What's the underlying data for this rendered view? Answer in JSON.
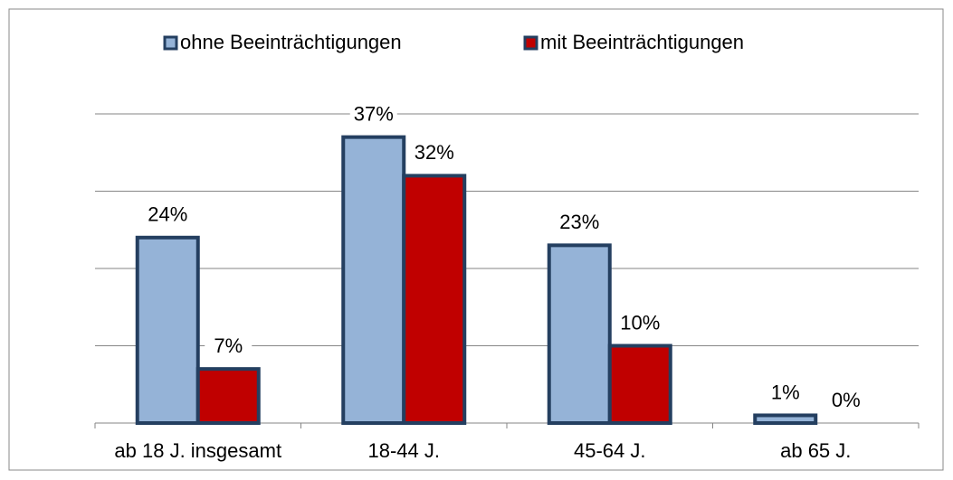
{
  "chart_data": {
    "type": "bar",
    "categories": [
      "ab 18 J. insgesamt",
      "18-44 J.",
      "45-64 J.",
      "ab 65 J."
    ],
    "series": [
      {
        "name": "ohne Beeinträchtigungen",
        "color": "#95b3d7",
        "values": [
          24,
          37,
          23,
          1
        ],
        "value_labels": [
          "24%",
          "37%",
          "23%",
          "1%"
        ]
      },
      {
        "name": "mit Beeinträchtigungen",
        "color": "#c00000",
        "values": [
          7,
          32,
          10,
          0
        ],
        "value_labels": [
          "7%",
          "32%",
          "10%",
          "0%"
        ]
      }
    ],
    "ylim": [
      0,
      40
    ],
    "yticks": [
      0,
      10,
      20,
      30,
      40
    ],
    "grid": true,
    "legend": "top"
  }
}
